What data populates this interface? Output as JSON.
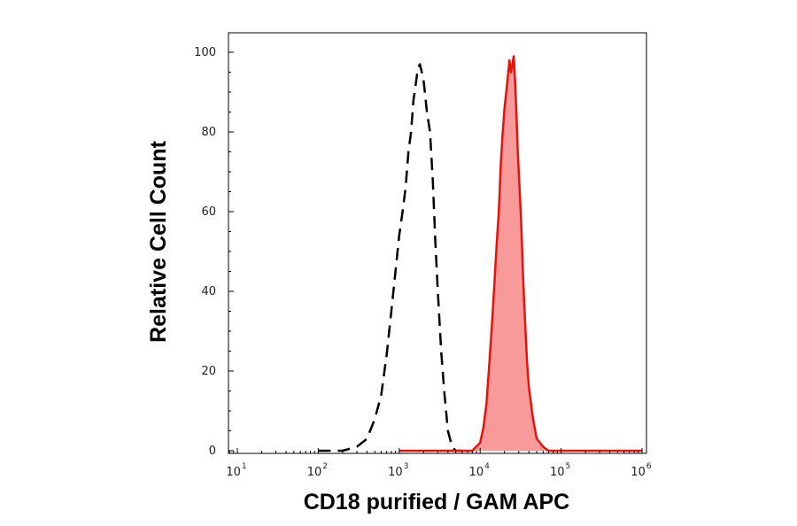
{
  "chart_data": {
    "type": "area",
    "xlabel": "CD18 purified / GAM APC",
    "ylabel": "Relative Cell Count",
    "x_scale": "log10",
    "xlim": [
      1,
      1000000
    ],
    "ylim": [
      0,
      105
    ],
    "x_ticks": [
      {
        "base": "10",
        "exp": "1"
      },
      {
        "base": "10",
        "exp": "2"
      },
      {
        "base": "10",
        "exp": "3"
      },
      {
        "base": "10",
        "exp": "4"
      },
      {
        "base": "10",
        "exp": "5"
      },
      {
        "base": "10",
        "exp": "6"
      }
    ],
    "y_ticks": [
      "0",
      "20",
      "40",
      "60",
      "80",
      "100"
    ],
    "grid": false,
    "series": [
      {
        "style": "dashed",
        "color": "#000000",
        "fill": false,
        "x": [
          100,
          200,
          300,
          400,
          500,
          600,
          700,
          800,
          900,
          1000,
          1100,
          1200,
          1300,
          1400,
          1500,
          1600,
          1700,
          1800,
          1900,
          2000,
          2200,
          2400,
          2600,
          2800,
          3000,
          3300,
          3600,
          4000,
          4500,
          5000,
          6000
        ],
        "y": [
          0,
          0,
          1,
          3,
          8,
          14,
          24,
          35,
          45,
          54,
          60,
          66,
          75,
          80,
          88,
          92,
          96,
          97,
          95,
          93,
          85,
          80,
          68,
          52,
          40,
          25,
          15,
          5,
          1,
          0,
          0
        ]
      },
      {
        "style": "solid",
        "color": "#e8120c",
        "fill": true,
        "fill_color": "#f99a9a",
        "x": [
          1000,
          5000,
          8000,
          10000,
          11000,
          12000,
          13000,
          14000,
          15000,
          16000,
          17000,
          18000,
          19000,
          20000,
          21000,
          22000,
          23000,
          24000,
          25000,
          26000,
          27000,
          28000,
          29000,
          30000,
          32000,
          34000,
          36000,
          38000,
          40000,
          45000,
          50000,
          55000,
          60000,
          70000,
          100000,
          1000000
        ],
        "y": [
          0,
          0,
          0,
          2,
          6,
          12,
          22,
          32,
          42,
          52,
          60,
          72,
          80,
          86,
          90,
          94,
          98,
          95,
          97,
          99,
          93,
          85,
          76,
          70,
          58,
          43,
          32,
          22,
          16,
          8,
          3,
          2,
          1,
          0,
          0,
          0
        ]
      }
    ]
  }
}
